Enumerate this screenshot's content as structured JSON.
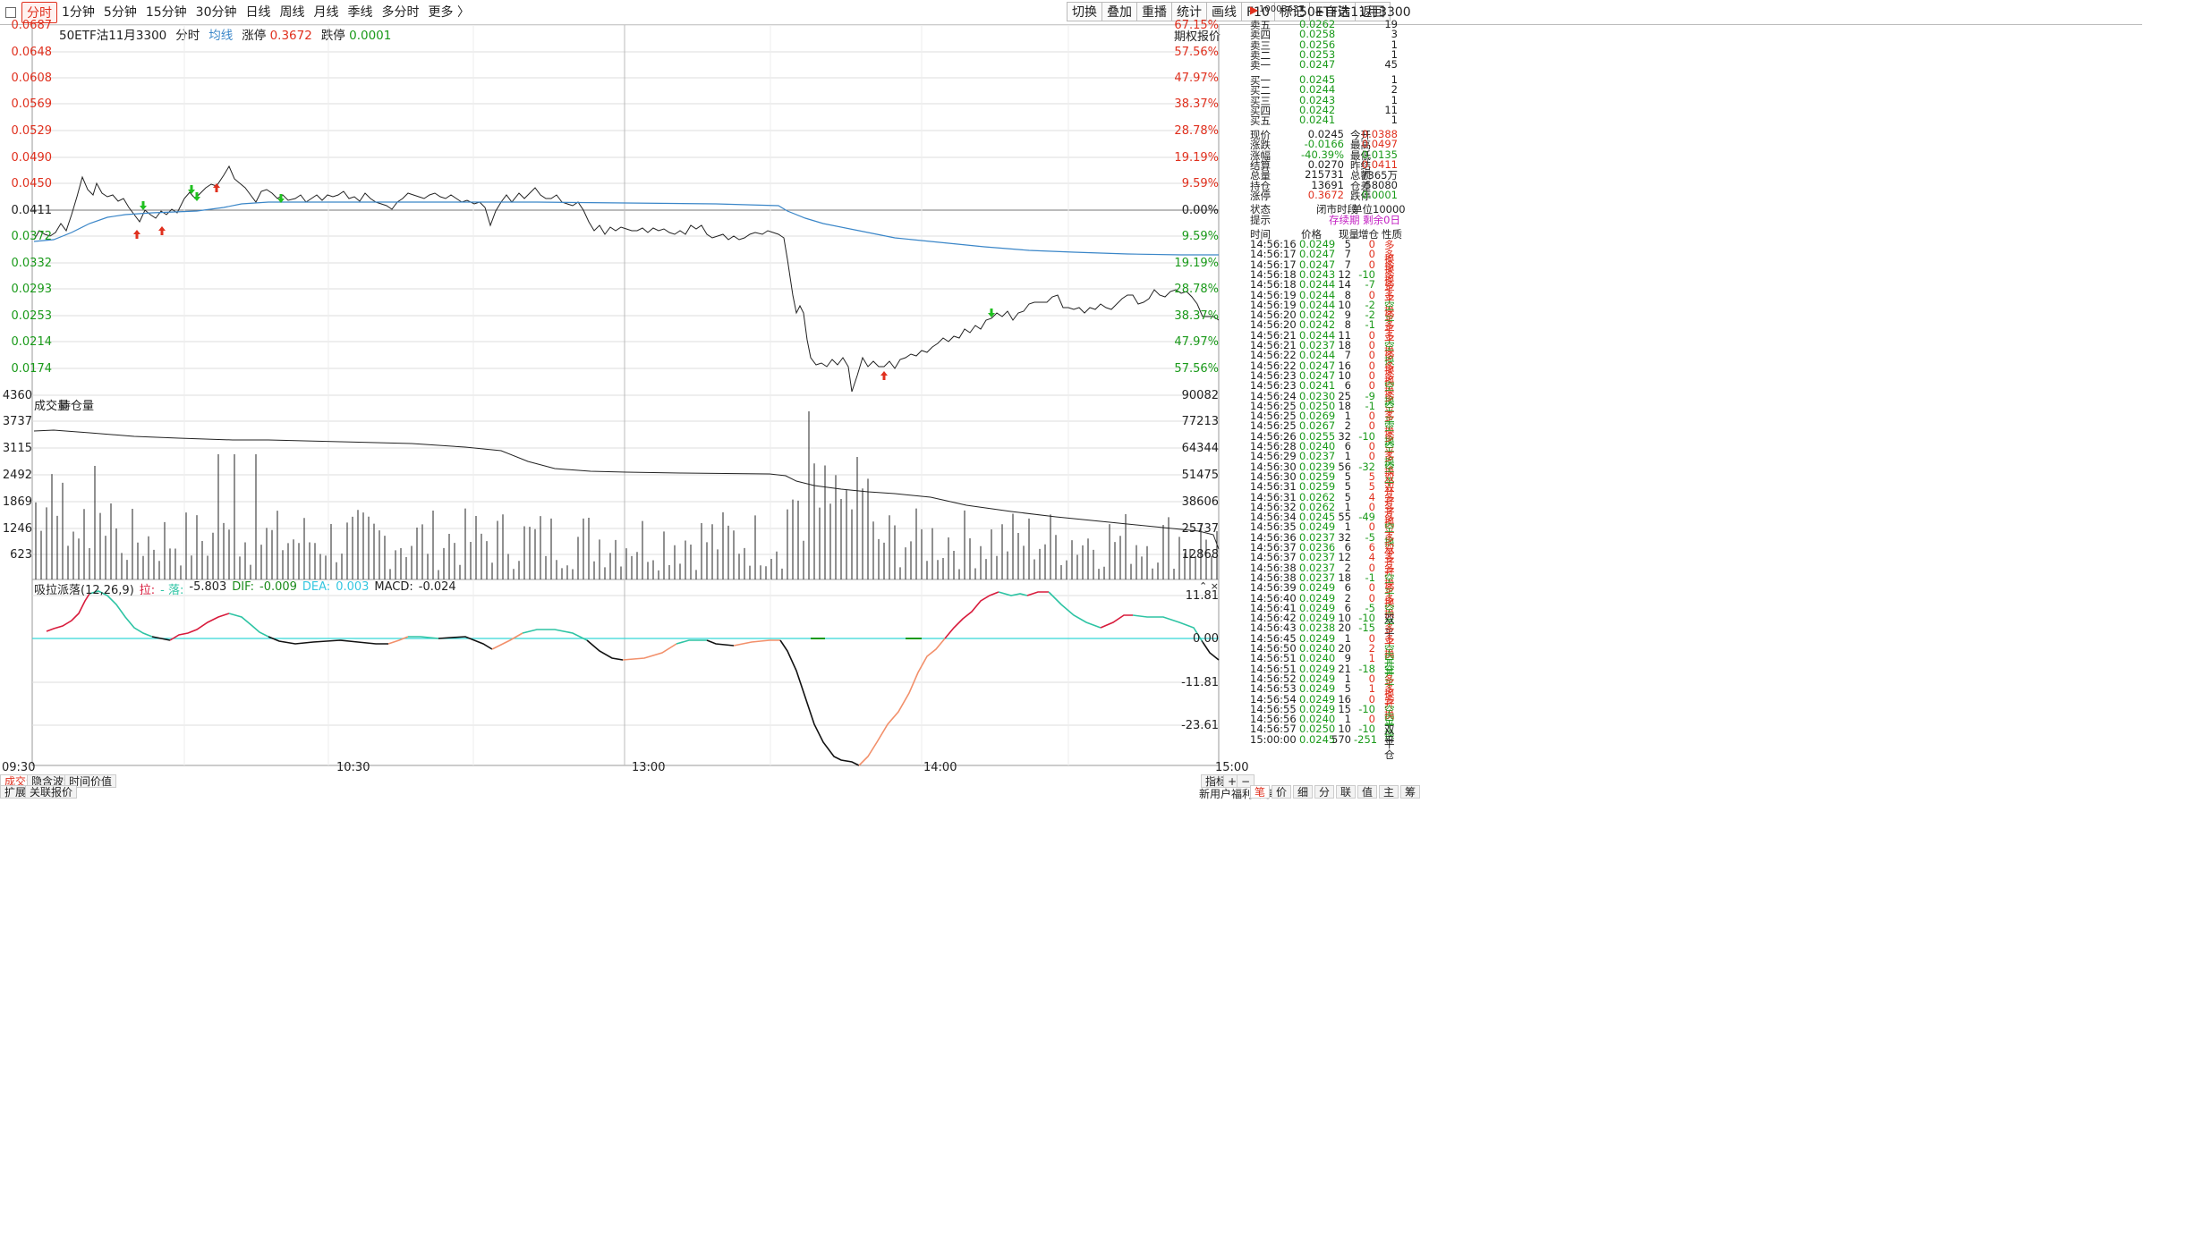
{
  "toolbar": {
    "window_icon": "window-icon",
    "tabs": [
      "分时",
      "1分钟",
      "5分钟",
      "15分钟",
      "30分钟",
      "日线",
      "周线",
      "月线",
      "季线",
      "多分时",
      "更多 〉"
    ],
    "active": "分时",
    "right_buttons": [
      "切换",
      "叠加",
      "重播",
      "统计",
      "画线",
      "F10",
      "标记",
      "+自选",
      "返回"
    ]
  },
  "info": {
    "title": "50ETF沽11月3300",
    "mode": "分时",
    "avg_label": "均线",
    "rise_label": "涨停",
    "rise_value": "0.3672",
    "fall_label": "跌停",
    "fall_value": "0.0001",
    "option_quote": "期权报价"
  },
  "price_axis": {
    "left": [
      "0.0687",
      "0.0648",
      "0.0608",
      "0.0569",
      "0.0529",
      "0.0490",
      "0.0450",
      "0.0411",
      "0.0372",
      "0.0332",
      "0.0293",
      "0.0253",
      "0.0214",
      "0.0174"
    ],
    "right": [
      "67.15%",
      "57.56%",
      "47.97%",
      "38.37%",
      "28.78%",
      "19.19%",
      "9.59%",
      "0.00%",
      "9.59%",
      "19.19%",
      "28.78%",
      "38.37%",
      "47.97%",
      "57.56%"
    ]
  },
  "volume": {
    "title": "成交量",
    "title2": "持仓量",
    "left": [
      "4360",
      "3737",
      "3115",
      "2492",
      "1869",
      "1246",
      "623"
    ],
    "right": [
      "90082",
      "77213",
      "64344",
      "51475",
      "38606",
      "25737",
      "12868"
    ]
  },
  "macd": {
    "title": "吸拉派落(12,26,9)",
    "pull": "拉:",
    "dash": "- 落:",
    "val": "-5.803",
    "dif_label": "DIF:",
    "dif": "-0.009",
    "dea_label": "DEA:",
    "dea": "0.003",
    "macd_label": "MACD:",
    "macd": "-0.024",
    "axis": [
      "11.81",
      "0.00",
      "-11.81",
      "-23.61"
    ]
  },
  "time_axis": [
    "09:30",
    "10:30",
    "13:00",
    "14:00",
    "15:00"
  ],
  "bottom": {
    "tabs": [
      "成交量",
      "隐含波动率",
      "时间价值"
    ],
    "expand": "扩展∧",
    "related": "关联报价",
    "indicator": "指标",
    "plus": "+",
    "minus": "−",
    "news": "新用户福利专享",
    "right_tabs": [
      "笔",
      "价",
      "细",
      "分",
      "联",
      "值",
      "主",
      "筹"
    ]
  },
  "quote": {
    "code": "10003637",
    "name": "50ETF沽11月3300",
    "sell": [
      [
        "卖五",
        "0.0262",
        "19"
      ],
      [
        "卖四",
        "0.0258",
        "3"
      ],
      [
        "卖三",
        "0.0256",
        "1"
      ],
      [
        "卖二",
        "0.0253",
        "1"
      ],
      [
        "卖一",
        "0.0247",
        "45"
      ]
    ],
    "buy": [
      [
        "买一",
        "0.0245",
        "1"
      ],
      [
        "买二",
        "0.0244",
        "2"
      ],
      [
        "买三",
        "0.0243",
        "1"
      ],
      [
        "买四",
        "0.0242",
        "11"
      ],
      [
        "买五",
        "0.0241",
        "1"
      ]
    ],
    "stats": [
      [
        "现价",
        "0.0245",
        "今开",
        "0.0388"
      ],
      [
        "涨跌",
        "-0.0166",
        "最高",
        "0.0497"
      ],
      [
        "涨幅",
        "-40.39%",
        "最低",
        "0.0135"
      ],
      [
        "结算",
        "0.0270",
        "昨结",
        "0.0411"
      ],
      [
        "总量",
        "215731",
        "总额",
        "7365万"
      ],
      [
        "持仓",
        "13691",
        "仓差",
        "-58080"
      ],
      [
        "涨停",
        "0.3672",
        "跌停",
        "0.0001"
      ]
    ],
    "status_label": "状态",
    "status": "闭市时段",
    "unit": "单位10000",
    "hint_label": "提示",
    "hint": "存续期 剩余0日"
  },
  "trades_header": [
    "时间",
    "价格",
    "现量",
    "增仓",
    "性质"
  ],
  "trades": [
    [
      "14:56:16",
      "0.0249",
      "5",
      "0",
      "多换"
    ],
    [
      "14:56:17",
      "0.0247",
      "7",
      "0",
      "多换"
    ],
    [
      "14:56:17",
      "0.0247",
      "7",
      "0",
      "多换"
    ],
    [
      "14:56:18",
      "0.0243",
      "12",
      "-10",
      "多平"
    ],
    [
      "14:56:18",
      "0.0244",
      "14",
      "-7",
      "多平"
    ],
    [
      "14:56:19",
      "0.0244",
      "8",
      "0",
      "多换"
    ],
    [
      "14:56:19",
      "0.0244",
      "10",
      "-2",
      "空平"
    ],
    [
      "14:56:20",
      "0.0242",
      "9",
      "-2",
      "多平"
    ],
    [
      "14:56:20",
      "0.0242",
      "8",
      "-1",
      "多平"
    ],
    [
      "14:56:21",
      "0.0244",
      "11",
      "0",
      "多换"
    ],
    [
      "14:56:21",
      "0.0237",
      "18",
      "0",
      "空换"
    ],
    [
      "14:56:22",
      "0.0244",
      "7",
      "0",
      "多换"
    ],
    [
      "14:56:22",
      "0.0247",
      "16",
      "0",
      "多换"
    ],
    [
      "14:56:23",
      "0.0247",
      "10",
      "0",
      "多换"
    ],
    [
      "14:56:23",
      "0.0241",
      "6",
      "0",
      "空换"
    ],
    [
      "14:56:24",
      "0.0230",
      "25",
      "-9",
      "多平"
    ],
    [
      "14:56:25",
      "0.0250",
      "18",
      "-1",
      "空平"
    ],
    [
      "14:56:25",
      "0.0269",
      "1",
      "0",
      "多换"
    ],
    [
      "14:56:25",
      "0.0267",
      "2",
      "0",
      "空换"
    ],
    [
      "14:56:26",
      "0.0255",
      "32",
      "-10",
      "多平"
    ],
    [
      "14:56:28",
      "0.0240",
      "6",
      "0",
      "空换"
    ],
    [
      "14:56:29",
      "0.0237",
      "1",
      "0",
      "多换"
    ],
    [
      "14:56:30",
      "0.0239",
      "56",
      "-32",
      "空平"
    ],
    [
      "14:56:30",
      "0.0259",
      "5",
      "5",
      "双开"
    ],
    [
      "14:56:31",
      "0.0259",
      "5",
      "5",
      "双开"
    ],
    [
      "14:56:31",
      "0.0262",
      "5",
      "4",
      "多开"
    ],
    [
      "14:56:32",
      "0.0262",
      "1",
      "0",
      "多换"
    ],
    [
      "14:56:34",
      "0.0245",
      "55",
      "-49",
      "多平"
    ],
    [
      "14:56:35",
      "0.0249",
      "1",
      "0",
      "空换"
    ],
    [
      "14:56:36",
      "0.0237",
      "32",
      "-5",
      "多平"
    ],
    [
      "14:56:37",
      "0.0236",
      "6",
      "6",
      "双开"
    ],
    [
      "14:56:37",
      "0.0237",
      "12",
      "4",
      "多开"
    ],
    [
      "14:56:38",
      "0.0237",
      "2",
      "0",
      "多换"
    ],
    [
      "14:56:38",
      "0.0237",
      "18",
      "-1",
      "空平"
    ],
    [
      "14:56:39",
      "0.0249",
      "6",
      "0",
      "多换"
    ],
    [
      "14:56:40",
      "0.0249",
      "2",
      "0",
      "多换"
    ],
    [
      "14:56:41",
      "0.0249",
      "6",
      "-5",
      "空平"
    ],
    [
      "14:56:42",
      "0.0249",
      "10",
      "-10",
      "双平"
    ],
    [
      "14:56:43",
      "0.0238",
      "20",
      "-15",
      "多平"
    ],
    [
      "14:56:45",
      "0.0249",
      "1",
      "0",
      "多换"
    ],
    [
      "14:56:50",
      "0.0240",
      "20",
      "2",
      "空开"
    ],
    [
      "14:56:51",
      "0.0240",
      "9",
      "1",
      "空开"
    ],
    [
      "14:56:51",
      "0.0249",
      "21",
      "-18",
      "空平"
    ],
    [
      "14:56:52",
      "0.0249",
      "1",
      "0",
      "多换"
    ],
    [
      "14:56:53",
      "0.0249",
      "5",
      "1",
      "多开"
    ],
    [
      "14:56:54",
      "0.0249",
      "16",
      "0",
      "多换"
    ],
    [
      "14:56:55",
      "0.0249",
      "15",
      "-10",
      "空平"
    ],
    [
      "14:56:56",
      "0.0240",
      "1",
      "0",
      "空换"
    ],
    [
      "14:56:57",
      "0.0250",
      "10",
      "-10",
      "双平"
    ],
    [
      "15:00:00",
      "0.0245",
      "570",
      "-251",
      "平仓"
    ]
  ],
  "colors": {
    "up": "#e0301e",
    "down": "#1a9a1a",
    "avg": "#3a86c8",
    "macd_up": "#2ec4a4",
    "macd_red": "#d81b3c",
    "macd_orange": "#f2906b",
    "zero": "#35d6d6"
  }
}
